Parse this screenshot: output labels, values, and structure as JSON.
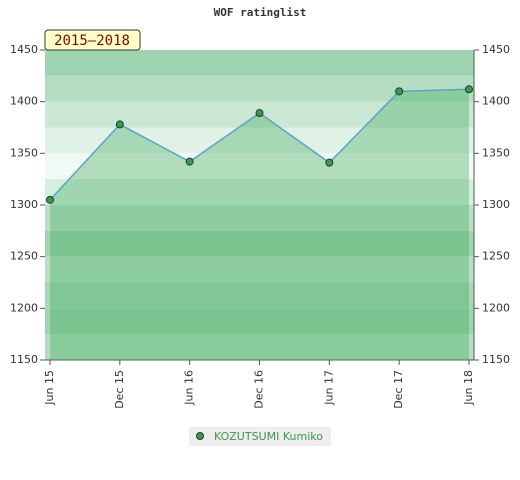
{
  "chart_data": {
    "type": "line",
    "title": "WOF ratinglist",
    "annotation": "2015–2018",
    "categories": [
      "Jun 15",
      "Dec 15",
      "Jun 16",
      "Dec 16",
      "Jun 17",
      "Dec 17",
      "Jun 18"
    ],
    "series": [
      {
        "name": "KOZUTSUMI Kumiko",
        "color": "#5ba3c8",
        "values": [
          1305,
          1378,
          1342,
          1389,
          1341,
          1410,
          1412
        ]
      }
    ],
    "ylim": [
      1150,
      1450
    ],
    "yticks": [
      1150,
      1200,
      1250,
      1300,
      1350,
      1400,
      1450
    ],
    "y2lim": [
      1150,
      1450
    ],
    "y2ticks": [
      1150,
      1200,
      1250,
      1300,
      1350,
      1400,
      1450
    ]
  }
}
